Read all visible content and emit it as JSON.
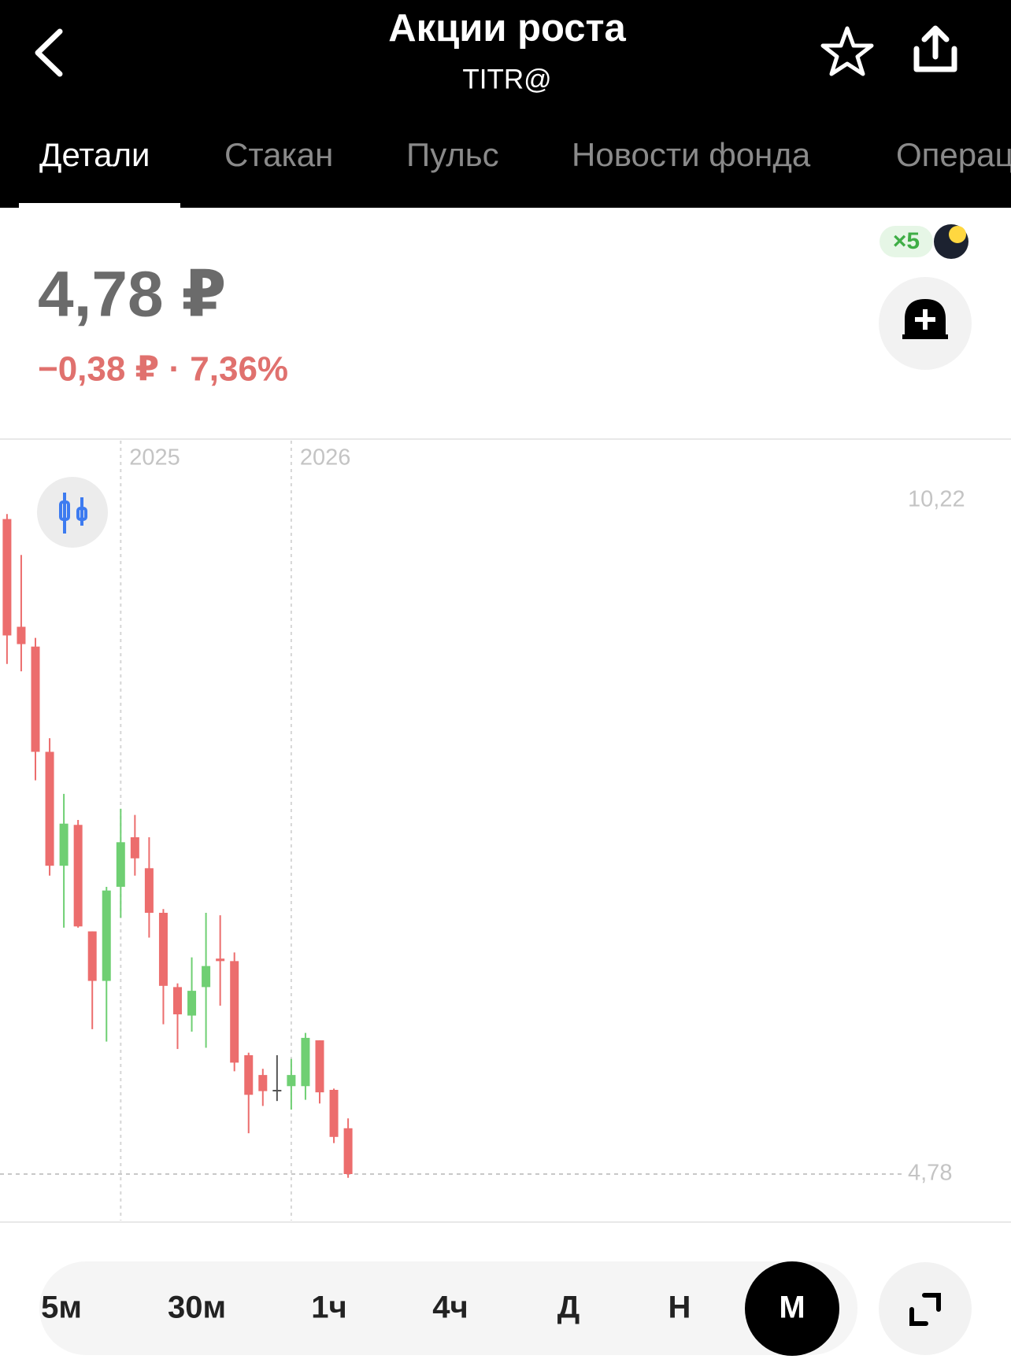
{
  "header": {
    "title": "Акции роста",
    "subtitle": "TITR@"
  },
  "tabs": [
    "Детали",
    "Стакан",
    "Пульс",
    "Новости фонда",
    "Операц"
  ],
  "active_tab": 0,
  "quote": {
    "price": "4,78 ₽",
    "change": "−0,38 ₽ · 7,36%",
    "badge": "×5"
  },
  "chart_data": {
    "type": "candlestick",
    "categories": [
      null,
      null,
      null,
      null,
      null,
      null,
      null,
      null,
      "2025",
      null,
      null,
      null,
      null,
      null,
      null,
      null,
      null,
      null,
      null,
      null,
      "2026",
      null,
      null,
      null,
      null
    ],
    "open": [
      10.07,
      9.2,
      9.04,
      8.19,
      7.27,
      7.6,
      6.74,
      6.34,
      7.1,
      7.5,
      7.25,
      6.89,
      6.29,
      6.06,
      6.29,
      6.52,
      6.5,
      5.74,
      5.58,
      5.46,
      5.49,
      5.49,
      5.86,
      5.46,
      5.15
    ],
    "high": [
      10.11,
      9.78,
      9.11,
      8.3,
      7.85,
      7.64,
      6.74,
      7.1,
      7.73,
      7.68,
      7.5,
      6.92,
      6.32,
      6.53,
      6.89,
      6.87,
      6.57,
      5.76,
      5.63,
      5.74,
      5.71,
      5.92,
      5.86,
      5.47,
      5.23
    ],
    "low": [
      8.9,
      8.84,
      7.96,
      7.19,
      6.77,
      6.77,
      5.95,
      5.85,
      6.85,
      7.19,
      6.69,
      5.99,
      5.79,
      5.93,
      5.8,
      6.14,
      5.61,
      5.11,
      5.33,
      5.37,
      5.3,
      5.38,
      5.35,
      5.03,
      4.75
    ],
    "close": [
      9.13,
      9.06,
      8.19,
      7.27,
      7.61,
      6.78,
      6.34,
      7.07,
      7.46,
      7.33,
      6.89,
      6.3,
      6.07,
      6.26,
      6.46,
      6.5,
      5.68,
      5.42,
      5.45,
      5.46,
      5.58,
      5.88,
      5.44,
      5.08,
      4.78
    ],
    "up_color": "#6fcf73",
    "down_color": "#ec6d6d",
    "flat_color": "#555555",
    "ylim": [
      4.78,
      10.22
    ],
    "yticks": [
      {
        "value": 10.22,
        "label": "10,22"
      },
      {
        "value": 4.78,
        "label": "4,78"
      }
    ]
  },
  "timeframes": [
    "5м",
    "30м",
    "1ч",
    "4ч",
    "Д",
    "Н",
    "М"
  ],
  "active_timeframe": 6
}
